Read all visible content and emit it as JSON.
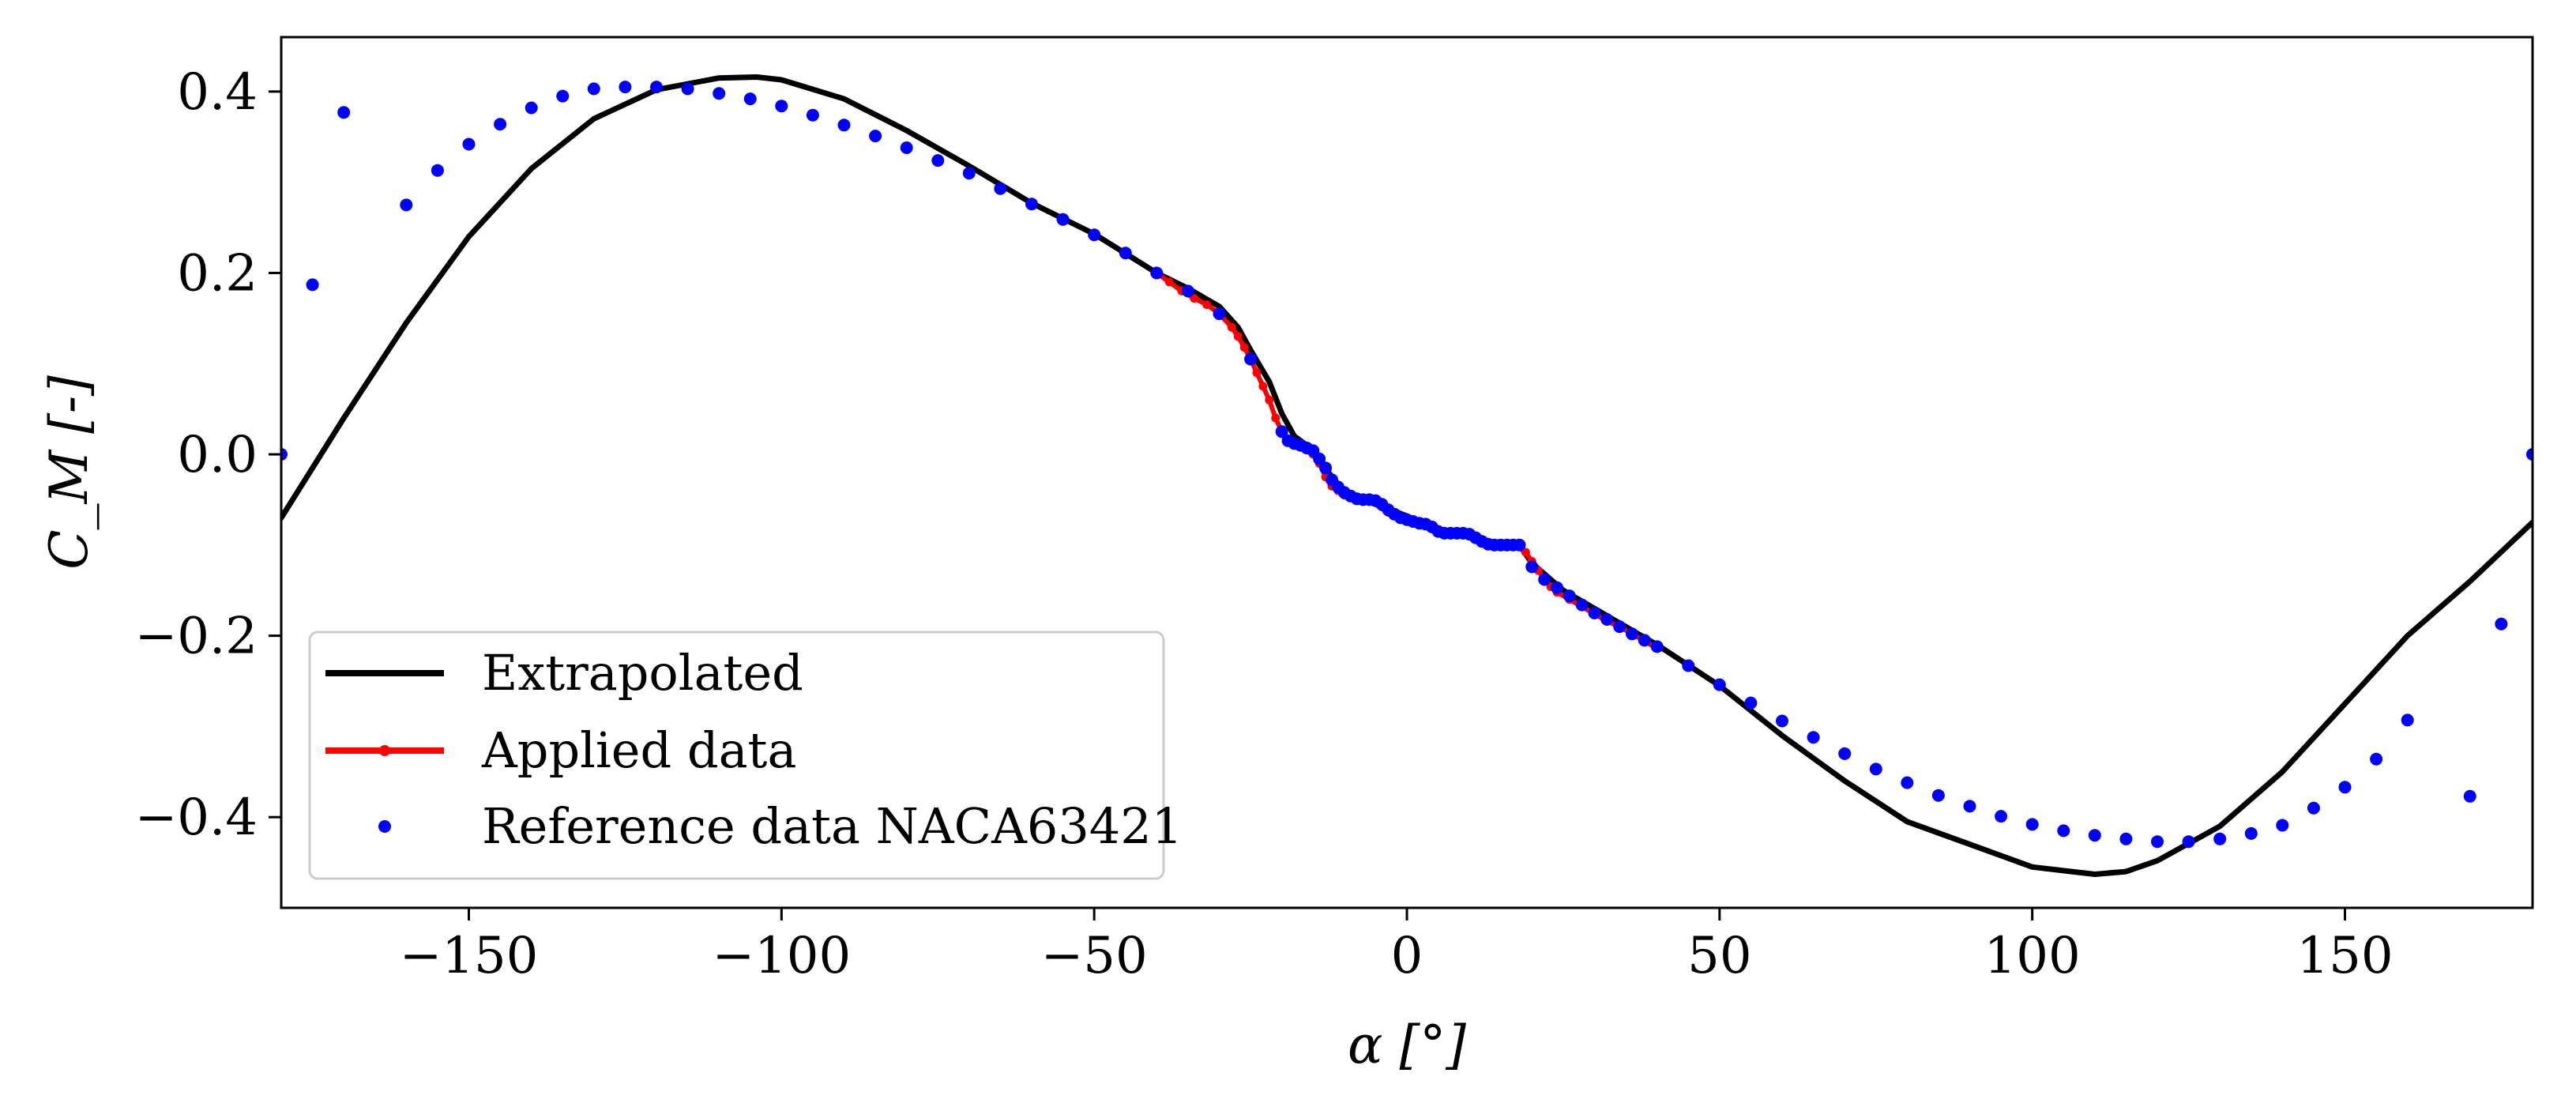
{
  "chart_data": {
    "type": "line",
    "title": "",
    "xlabel": "α [°]",
    "ylabel": "C_M [-]",
    "xlim": [
      -180,
      180
    ],
    "ylim": [
      -0.5,
      0.46
    ],
    "grid": false,
    "legend_position": "lower-left",
    "x_ticks": [
      -150,
      -100,
      -50,
      0,
      50,
      100,
      150
    ],
    "x_tick_labels": [
      "−150",
      "−100",
      "−50",
      "0",
      "50",
      "100",
      "150"
    ],
    "y_ticks": [
      0.4,
      0.2,
      0.0,
      -0.2,
      -0.4
    ],
    "y_tick_labels": [
      "0.4",
      "0.2",
      "0.0",
      "−0.2",
      "−0.4"
    ],
    "series": [
      {
        "name": "Extrapolated",
        "style": "line",
        "color": "#000000",
        "x": [
          -180,
          -170,
          -160,
          -150,
          -140,
          -130,
          -120,
          -110,
          -104,
          -100,
          -90,
          -80,
          -70,
          -60,
          -50,
          -40,
          -35,
          -30,
          -27,
          -25,
          -22,
          -20,
          -18,
          -15,
          -12,
          -10,
          -7,
          -5,
          -3,
          0,
          3,
          5,
          8,
          10,
          13,
          15,
          18,
          20,
          25,
          30,
          35,
          40,
          50,
          60,
          70,
          80,
          90,
          100,
          110,
          115,
          120,
          130,
          140,
          150,
          160,
          170,
          180
        ],
        "values": [
          -0.07,
          0.04,
          0.145,
          0.24,
          0.315,
          0.37,
          0.402,
          0.415,
          0.416,
          0.413,
          0.392,
          0.357,
          0.318,
          0.277,
          0.243,
          0.2,
          0.183,
          0.163,
          0.14,
          0.115,
          0.08,
          0.045,
          0.02,
          0.005,
          -0.025,
          -0.04,
          -0.05,
          -0.055,
          -0.06,
          -0.068,
          -0.078,
          -0.085,
          -0.088,
          -0.09,
          -0.096,
          -0.1,
          -0.1,
          -0.12,
          -0.15,
          -0.17,
          -0.19,
          -0.21,
          -0.255,
          -0.31,
          -0.36,
          -0.405,
          -0.43,
          -0.455,
          -0.463,
          -0.46,
          -0.448,
          -0.41,
          -0.35,
          -0.275,
          -0.2,
          -0.14,
          -0.075
        ]
      },
      {
        "name": "Applied data",
        "style": "line-marker",
        "color": "#ff0000",
        "x": [
          -40,
          -38,
          -36,
          -34,
          -32,
          -30,
          -28,
          -27,
          -26,
          -25,
          -24,
          -23,
          -22,
          -21,
          -20,
          -19,
          -18,
          -17,
          -16,
          -15,
          -14,
          -13,
          -12,
          -11,
          -10,
          -9,
          -8,
          -7,
          -6,
          -5,
          -4,
          -3,
          -2,
          -1,
          0,
          1,
          2,
          3,
          4,
          5,
          6,
          7,
          8,
          9,
          10,
          11,
          12,
          13,
          14,
          15,
          16,
          17,
          18,
          19,
          20,
          21,
          22,
          23,
          24,
          26,
          28,
          30,
          32,
          34,
          36,
          38,
          40
        ],
        "values": [
          0.2,
          0.19,
          0.18,
          0.172,
          0.165,
          0.155,
          0.14,
          0.13,
          0.118,
          0.105,
          0.09,
          0.075,
          0.06,
          0.04,
          0.025,
          0.015,
          0.01,
          0.008,
          0.005,
          0.0,
          -0.01,
          -0.025,
          -0.035,
          -0.04,
          -0.045,
          -0.048,
          -0.05,
          -0.05,
          -0.05,
          -0.052,
          -0.058,
          -0.064,
          -0.068,
          -0.07,
          -0.072,
          -0.074,
          -0.076,
          -0.078,
          -0.082,
          -0.086,
          -0.088,
          -0.088,
          -0.088,
          -0.088,
          -0.09,
          -0.094,
          -0.097,
          -0.1,
          -0.1,
          -0.1,
          -0.1,
          -0.1,
          -0.1,
          -0.108,
          -0.118,
          -0.128,
          -0.138,
          -0.146,
          -0.152,
          -0.16,
          -0.168,
          -0.176,
          -0.184,
          -0.19,
          -0.198,
          -0.206,
          -0.214
        ]
      },
      {
        "name": "Reference data NACA63421",
        "style": "marker",
        "color": "#0000ff",
        "x": [
          -180,
          -175,
          -170,
          -160,
          -155,
          -150,
          -145,
          -140,
          -135,
          -130,
          -125,
          -120,
          -115,
          -110,
          -105,
          -100,
          -95,
          -90,
          -85,
          -80,
          -75,
          -70,
          -65,
          -60,
          -55,
          -50,
          -45,
          -40,
          -35,
          -30,
          -25,
          -20,
          -19,
          -18,
          -17,
          -16,
          -15,
          -14,
          -13,
          -12,
          -11,
          -10,
          -9,
          -8,
          -7,
          -6,
          -5,
          -4,
          -3,
          -2,
          -1,
          0,
          1,
          2,
          3,
          4,
          5,
          6,
          7,
          8,
          9,
          10,
          11,
          12,
          13,
          14,
          15,
          16,
          17,
          18,
          20,
          22,
          24,
          26,
          28,
          30,
          32,
          34,
          36,
          38,
          40,
          45,
          50,
          55,
          60,
          65,
          70,
          75,
          80,
          85,
          90,
          95,
          100,
          105,
          110,
          115,
          120,
          125,
          130,
          135,
          140,
          145,
          150,
          155,
          160,
          170,
          175,
          180
        ],
        "values": [
          0.0,
          0.187,
          0.377,
          0.275,
          0.313,
          0.342,
          0.364,
          0.382,
          0.395,
          0.403,
          0.405,
          0.405,
          0.403,
          0.398,
          0.392,
          0.384,
          0.374,
          0.363,
          0.351,
          0.338,
          0.324,
          0.31,
          0.293,
          0.276,
          0.259,
          0.242,
          0.222,
          0.2,
          0.18,
          0.155,
          0.105,
          0.025,
          0.015,
          0.012,
          0.01,
          0.007,
          0.004,
          -0.005,
          -0.015,
          -0.028,
          -0.036,
          -0.042,
          -0.046,
          -0.049,
          -0.05,
          -0.05,
          -0.051,
          -0.055,
          -0.061,
          -0.066,
          -0.07,
          -0.072,
          -0.074,
          -0.076,
          -0.077,
          -0.08,
          -0.085,
          -0.087,
          -0.087,
          -0.087,
          -0.087,
          -0.088,
          -0.092,
          -0.096,
          -0.099,
          -0.1,
          -0.1,
          -0.1,
          -0.1,
          -0.1,
          -0.124,
          -0.138,
          -0.147,
          -0.156,
          -0.166,
          -0.175,
          -0.182,
          -0.19,
          -0.198,
          -0.205,
          -0.212,
          -0.233,
          -0.254,
          -0.274,
          -0.294,
          -0.312,
          -0.33,
          -0.347,
          -0.362,
          -0.376,
          -0.388,
          -0.399,
          -0.408,
          -0.415,
          -0.42,
          -0.424,
          -0.427,
          -0.427,
          -0.424,
          -0.418,
          -0.409,
          -0.39,
          -0.367,
          -0.336,
          -0.293,
          -0.377,
          -0.187,
          0.0
        ]
      }
    ]
  },
  "legend": {
    "items": [
      "Extrapolated",
      "Applied data",
      "Reference data NACA63421"
    ]
  }
}
